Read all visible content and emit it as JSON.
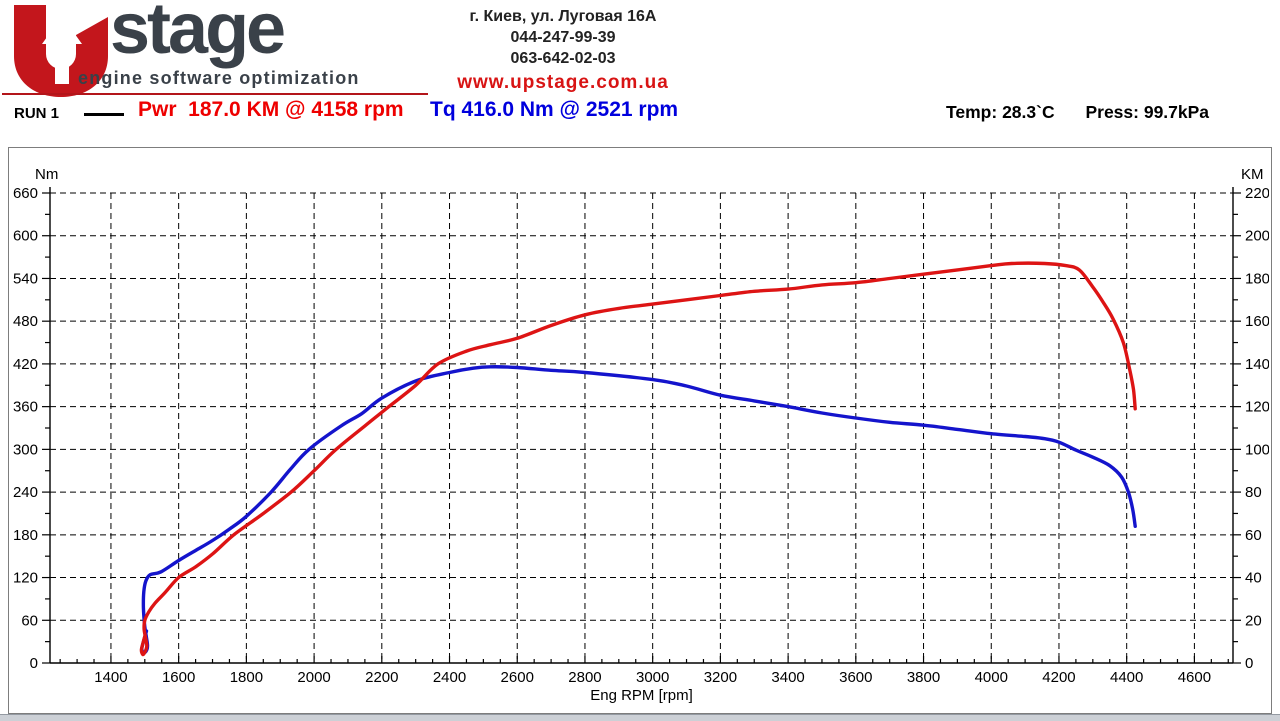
{
  "header": {
    "logo": {
      "stage_text": "stage",
      "tagline": "engine software optimization"
    },
    "contact": {
      "address": "г. Киев, ул. Луговая 16А",
      "phone1": "044-247-99-39",
      "phone2": "063-642-02-03",
      "website": "www.upstage.com.ua"
    }
  },
  "run_info": {
    "run_label": "RUN 1",
    "power_summary": "Pwr  187.0 KM @ 4158 rpm",
    "torque_summary": "Tq 416.0 Nm @ 2521 rpm",
    "temp": "Temp: 28.3`C",
    "press": "Press: 99.7kPa"
  },
  "colors": {
    "power_curve": "#dd1414",
    "torque_curve": "#1414cc",
    "power_text": "#ee0000",
    "torque_text": "#0000dd",
    "logo_red": "#c3161c",
    "logo_gray": "#3a4149",
    "axis": "#000000"
  },
  "chart_data": {
    "type": "line",
    "x_axis": {
      "label": "Eng RPM [rpm]",
      "min": 1220,
      "max": 4714,
      "tick_start": 1400,
      "tick_end": 4600,
      "major_step": 200,
      "minor_step": 50
    },
    "y_left": {
      "label": "Nm",
      "min": 0,
      "max": 660,
      "major_step": 60,
      "minor_step": 30
    },
    "y_right": {
      "label": "KM",
      "min": 0,
      "max": 220,
      "major_step": 20,
      "minor_step": 10
    },
    "grid": "dashed",
    "legend_position": "top-left-header",
    "annotations": {
      "peak_power_km": 187.0,
      "peak_power_rpm": 4158,
      "peak_torque_nm": 416.0,
      "peak_torque_rpm": 2521,
      "temp_c": 28.3,
      "press_kpa": 99.7
    },
    "series": [
      {
        "name": "Torque",
        "unit": "Nm",
        "axis": "left",
        "color": "#1414cc",
        "points": [
          [
            1505,
            45
          ],
          [
            1495,
            28
          ],
          [
            1491,
            20
          ],
          [
            1495,
            15
          ],
          [
            1503,
            16
          ],
          [
            1508,
            24
          ],
          [
            1504,
            38
          ],
          [
            1499,
            55
          ],
          [
            1496,
            78
          ],
          [
            1497,
            100
          ],
          [
            1503,
            115
          ],
          [
            1516,
            124
          ],
          [
            1548,
            128
          ],
          [
            1600,
            144
          ],
          [
            1650,
            158
          ],
          [
            1700,
            172
          ],
          [
            1750,
            188
          ],
          [
            1800,
            206
          ],
          [
            1873,
            240
          ],
          [
            1930,
            272
          ],
          [
            1985,
            300
          ],
          [
            2080,
            333
          ],
          [
            2140,
            350
          ],
          [
            2200,
            372
          ],
          [
            2300,
            396
          ],
          [
            2400,
            408
          ],
          [
            2470,
            414
          ],
          [
            2521,
            416
          ],
          [
            2600,
            415
          ],
          [
            2700,
            411
          ],
          [
            2800,
            408
          ],
          [
            3000,
            398
          ],
          [
            3100,
            389
          ],
          [
            3200,
            376
          ],
          [
            3300,
            368
          ],
          [
            3400,
            360
          ],
          [
            3500,
            351
          ],
          [
            3600,
            344
          ],
          [
            3700,
            338
          ],
          [
            3800,
            334
          ],
          [
            3900,
            328
          ],
          [
            4000,
            322
          ],
          [
            4100,
            318
          ],
          [
            4158,
            315
          ],
          [
            4200,
            310
          ],
          [
            4250,
            299
          ],
          [
            4300,
            289
          ],
          [
            4350,
            277
          ],
          [
            4385,
            261
          ],
          [
            4405,
            240
          ],
          [
            4418,
            215
          ],
          [
            4425,
            192
          ]
        ]
      },
      {
        "name": "Power",
        "unit": "KM",
        "axis": "right",
        "color": "#dd1414",
        "points": [
          [
            1501,
            13
          ],
          [
            1494,
            9
          ],
          [
            1490,
            6
          ],
          [
            1494,
            4
          ],
          [
            1500,
            5
          ],
          [
            1506,
            8
          ],
          [
            1502,
            12
          ],
          [
            1498,
            16
          ],
          [
            1500,
            20
          ],
          [
            1512,
            24
          ],
          [
            1530,
            28
          ],
          [
            1560,
            33
          ],
          [
            1600,
            40
          ],
          [
            1650,
            45
          ],
          [
            1700,
            51
          ],
          [
            1763,
            60
          ],
          [
            1850,
            70
          ],
          [
            1932,
            80
          ],
          [
            2000,
            90
          ],
          [
            2065,
            100
          ],
          [
            2150,
            111
          ],
          [
            2221,
            120
          ],
          [
            2300,
            130
          ],
          [
            2366,
            140
          ],
          [
            2450,
            146
          ],
          [
            2521,
            149
          ],
          [
            2600,
            152
          ],
          [
            2700,
            158
          ],
          [
            2800,
            163
          ],
          [
            2900,
            166
          ],
          [
            3000,
            168
          ],
          [
            3100,
            170
          ],
          [
            3200,
            172
          ],
          [
            3300,
            174
          ],
          [
            3400,
            175
          ],
          [
            3500,
            177
          ],
          [
            3600,
            178
          ],
          [
            3700,
            180
          ],
          [
            3800,
            182
          ],
          [
            3900,
            184
          ],
          [
            4000,
            186
          ],
          [
            4060,
            187
          ],
          [
            4158,
            187
          ],
          [
            4220,
            186
          ],
          [
            4260,
            184
          ],
          [
            4300,
            176
          ],
          [
            4330,
            169
          ],
          [
            4360,
            161
          ],
          [
            4390,
            150
          ],
          [
            4408,
            138
          ],
          [
            4420,
            128
          ],
          [
            4425,
            119
          ]
        ]
      }
    ]
  }
}
